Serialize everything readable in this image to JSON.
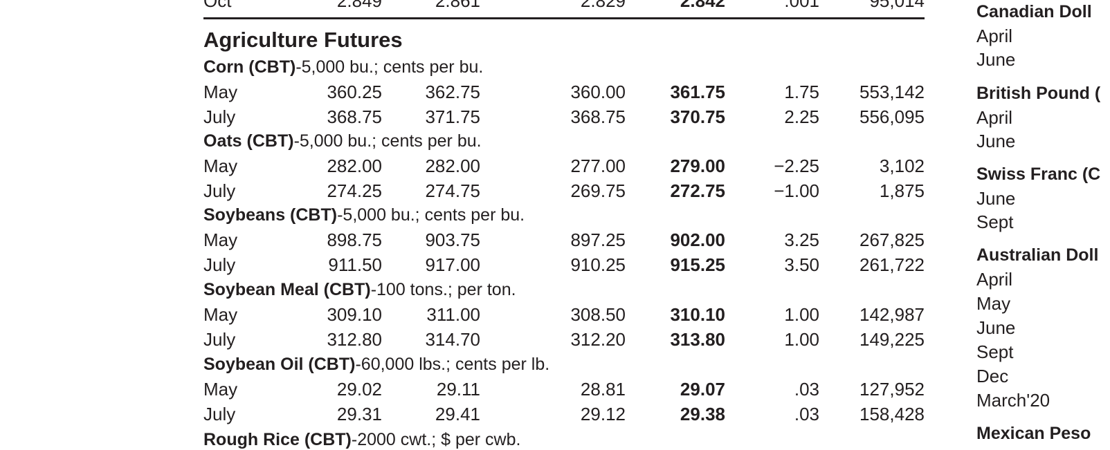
{
  "top_partial_row": {
    "month": "Oct",
    "open": "2.849",
    "high": "2.861",
    "low": "2.829",
    "settle": "2.842",
    "chg": ".001",
    "open_int": "95,014"
  },
  "section_title": "Agriculture Futures",
  "contracts": [
    {
      "name": "Corn (CBT)",
      "spec": "-5,000 bu.; cents per bu.",
      "rows": [
        {
          "month": "May",
          "open": "360.25",
          "high": "362.75",
          "low": "360.00",
          "settle": "361.75",
          "chg": "1.75",
          "open_int": "553,142"
        },
        {
          "month": "July",
          "open": "368.75",
          "high": "371.75",
          "low": "368.75",
          "settle": "370.75",
          "chg": "2.25",
          "open_int": "556,095"
        }
      ]
    },
    {
      "name": "Oats (CBT)",
      "spec": "-5,000 bu.; cents per bu.",
      "rows": [
        {
          "month": "May",
          "open": "282.00",
          "high": "282.00",
          "low": "277.00",
          "settle": "279.00",
          "chg": "−2.25",
          "open_int": "3,102"
        },
        {
          "month": "July",
          "open": "274.25",
          "high": "274.75",
          "low": "269.75",
          "settle": "272.75",
          "chg": "−1.00",
          "open_int": "1,875"
        }
      ]
    },
    {
      "name": "Soybeans (CBT)",
      "spec": "-5,000 bu.; cents per bu.",
      "rows": [
        {
          "month": "May",
          "open": "898.75",
          "high": "903.75",
          "low": "897.25",
          "settle": "902.00",
          "chg": "3.25",
          "open_int": "267,825"
        },
        {
          "month": "July",
          "open": "911.50",
          "high": "917.00",
          "low": "910.25",
          "settle": "915.25",
          "chg": "3.50",
          "open_int": "261,722"
        }
      ]
    },
    {
      "name": "Soybean Meal (CBT)",
      "spec": "-100 tons.; per ton.",
      "rows": [
        {
          "month": "May",
          "open": "309.10",
          "high": "311.00",
          "low": "308.50",
          "settle": "310.10",
          "chg": "1.00",
          "open_int": "142,987"
        },
        {
          "month": "July",
          "open": "312.80",
          "high": "314.70",
          "low": "312.20",
          "settle": "313.80",
          "chg": "1.00",
          "open_int": "149,225"
        }
      ]
    },
    {
      "name": "Soybean Oil (CBT)",
      "spec": "-60,000 lbs.; cents per lb.",
      "rows": [
        {
          "month": "May",
          "open": "29.02",
          "high": "29.11",
          "low": "28.81",
          "settle": "29.07",
          "chg": ".03",
          "open_int": "127,952"
        },
        {
          "month": "July",
          "open": "29.31",
          "high": "29.41",
          "low": "29.12",
          "settle": "29.38",
          "chg": ".03",
          "open_int": "158,428"
        }
      ]
    },
    {
      "name": "Rough Rice (CBT)",
      "spec": "-2000 cwt.; $ per cwb.",
      "rows": []
    }
  ],
  "right_column": {
    "groups": [
      {
        "header": "Canadian Doll",
        "months": [
          "April",
          "June"
        ]
      },
      {
        "header": "British Pound (",
        "months": [
          "April",
          "June"
        ]
      },
      {
        "header": "Swiss Franc (C",
        "months": [
          "June",
          "Sept"
        ]
      },
      {
        "header": "Australian Doll",
        "months": [
          "April",
          "May",
          "June",
          "Sept",
          "Dec",
          "March'20"
        ]
      },
      {
        "header": "Mexican Peso",
        "months": []
      }
    ]
  }
}
